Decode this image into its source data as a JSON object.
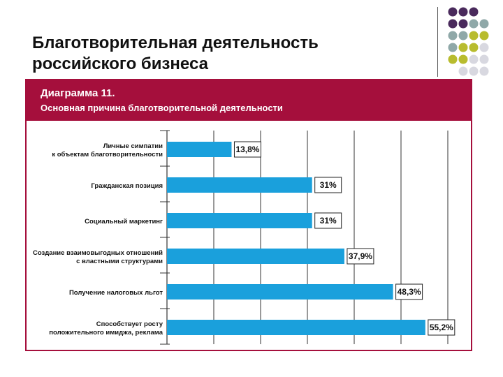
{
  "slide": {
    "title_line1": "Благотворительная деятельность",
    "title_line2": "российского бизнеса"
  },
  "figure": {
    "number": "Диаграмма 11.",
    "caption": "Основная причина благотворительной деятельности"
  },
  "decor": {
    "dot_colors": [
      "#4a2a5c",
      "#8fa8a8",
      "#b8bc2e",
      "#d8d8e0"
    ]
  },
  "colors": {
    "header": "#a50f3c",
    "bar": "#1aa0dc",
    "grid": "#333333"
  },
  "chart_data": {
    "type": "bar",
    "orientation": "horizontal",
    "categories": [
      [
        "Личные симпатии",
        "к объектам благотворительности"
      ],
      [
        "Гражданская позиция"
      ],
      [
        "Социальный маркетинг"
      ],
      [
        "Создание взаимовыгодных отношений",
        "с властными структурами"
      ],
      [
        "Получение налоговых льгот"
      ],
      [
        "Способствует росту",
        "положительного имиджа, реклама"
      ]
    ],
    "values": [
      13.8,
      31,
      31,
      37.9,
      48.3,
      55.2
    ],
    "value_labels": [
      "13,8%",
      "31%",
      "31%",
      "37,9%",
      "48,3%",
      "55,2%"
    ],
    "xlim": [
      0,
      60
    ],
    "grid": true
  }
}
